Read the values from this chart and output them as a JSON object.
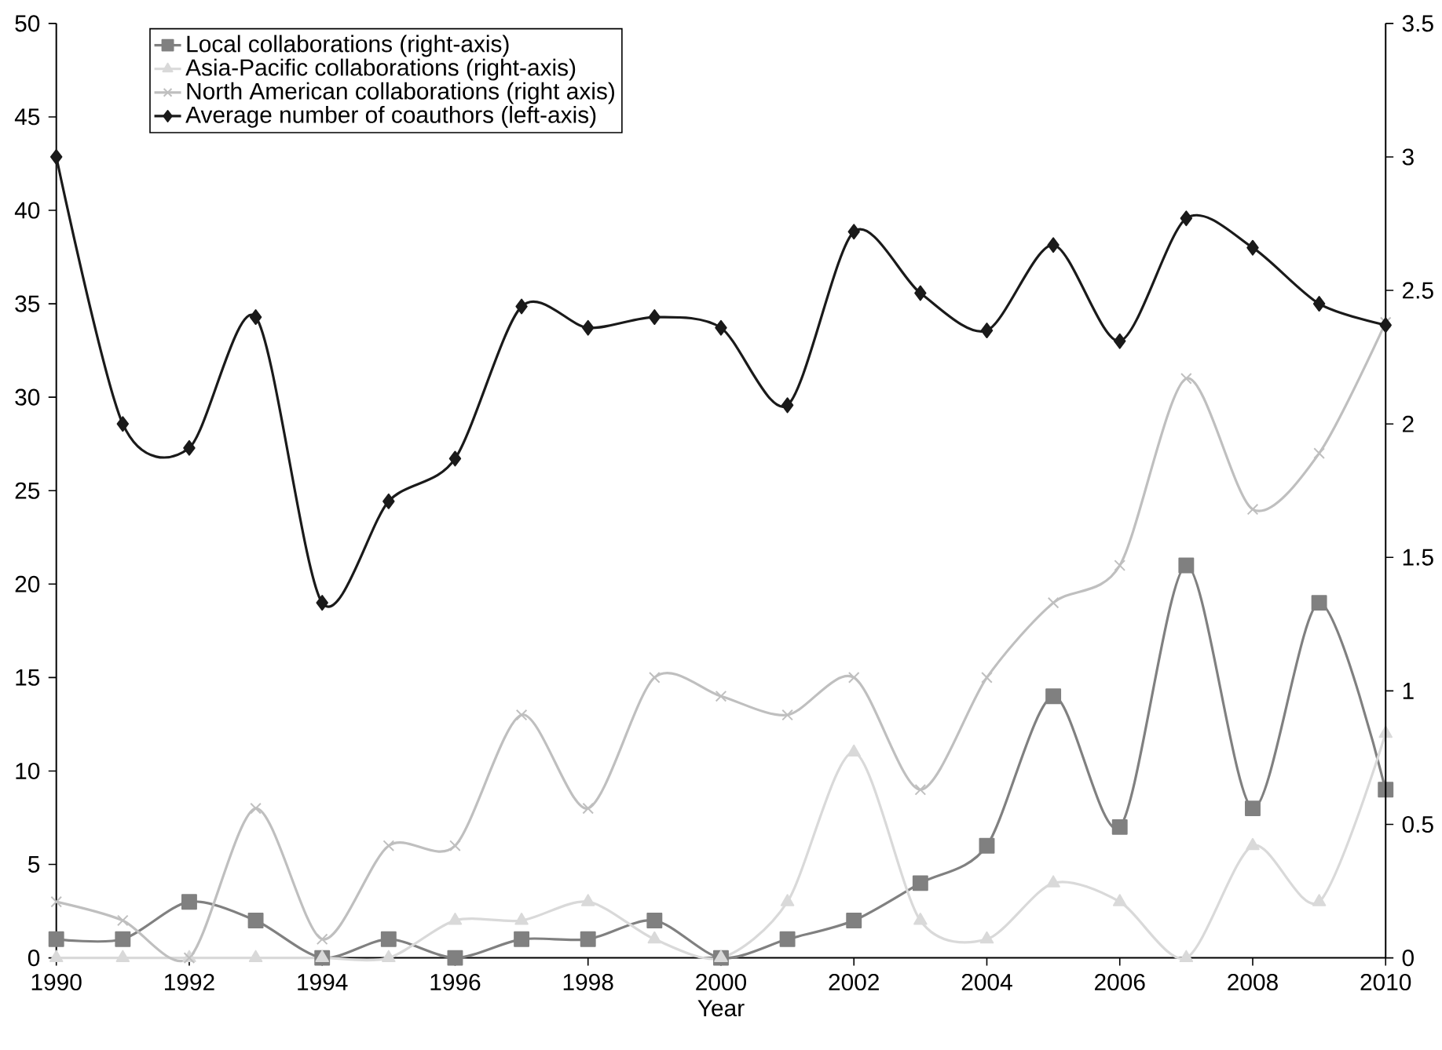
{
  "chart_data": {
    "type": "line",
    "xlabel": "Year",
    "x": [
      1990,
      1991,
      1992,
      1993,
      1994,
      1995,
      1996,
      1997,
      1998,
      1999,
      2000,
      2001,
      2002,
      2003,
      2004,
      2005,
      2006,
      2007,
      2008,
      2009,
      2010
    ],
    "xlim": [
      1990,
      2010
    ],
    "xticks": [
      1990,
      1992,
      1994,
      1996,
      1998,
      2000,
      2002,
      2004,
      2006,
      2008,
      2010
    ],
    "ylim": [
      0,
      50
    ],
    "yticks": [
      0,
      5,
      10,
      15,
      20,
      25,
      30,
      35,
      40,
      45,
      50
    ],
    "y2lim": [
      0,
      3.5
    ],
    "y2ticks": [
      0,
      0.5,
      1,
      1.5,
      2,
      2.5,
      3,
      3.5
    ],
    "grid": false,
    "legend": "top left",
    "line_style": "solid",
    "series": [
      {
        "name": "Local collaborations (right-axis)",
        "color": "#808080",
        "marker": "square",
        "values": [
          1,
          1,
          3,
          2,
          0,
          1,
          0,
          1,
          1,
          2,
          0,
          1,
          2,
          4,
          6,
          14,
          7,
          21,
          8,
          19,
          9
        ]
      },
      {
        "name": "Asia-Pacific collaborations (right-axis)",
        "color": "#d9d9d9",
        "marker": "triangle",
        "values": [
          0,
          0,
          0,
          0,
          0,
          0,
          2,
          2,
          3,
          1,
          0,
          3,
          11,
          2,
          1,
          4,
          3,
          0,
          6,
          3,
          12
        ]
      },
      {
        "name": "North American collaborations (right axis)",
        "color": "#bfbfbf",
        "marker": "cross",
        "values": [
          3,
          2,
          0,
          8,
          1,
          6,
          6,
          13,
          8,
          15,
          14,
          13,
          15,
          9,
          15,
          19,
          21,
          31,
          24,
          27,
          34
        ]
      },
      {
        "name": "Average number of coauthors (left-axis)",
        "color": "#1a1a1a",
        "marker": "diamond",
        "axis": "y2",
        "values": [
          3.0,
          2.0,
          1.91,
          2.4,
          1.33,
          1.71,
          1.87,
          2.44,
          2.36,
          2.4,
          2.36,
          2.07,
          2.72,
          2.49,
          2.35,
          2.67,
          2.31,
          2.77,
          2.66,
          2.45,
          2.37
        ]
      }
    ]
  }
}
